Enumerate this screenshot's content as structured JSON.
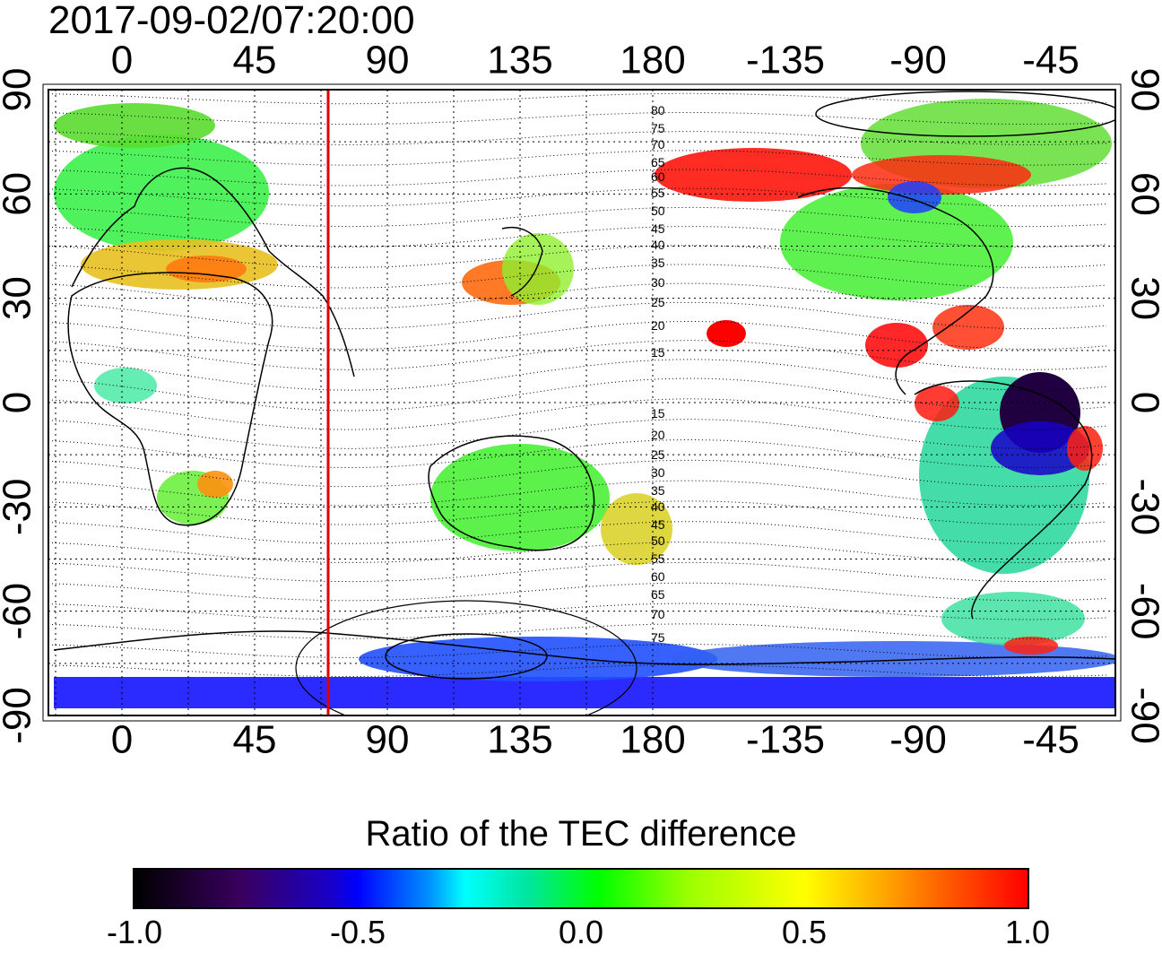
{
  "timestamp": "2017-09-02/07:20:00",
  "map": {
    "lon_ticks_top": [
      "0",
      "45",
      "90",
      "135",
      "180",
      "-135",
      "-90",
      "-45"
    ],
    "lon_ticks_bottom": [
      "0",
      "45",
      "90",
      "135",
      "180",
      "-135",
      "-90",
      "-45"
    ],
    "lat_ticks_left": [
      "90",
      "60",
      "30",
      "0",
      "-30",
      "-60",
      "-90"
    ],
    "lat_ticks_right": [
      "90",
      "60",
      "30",
      "0",
      "-30",
      "-60",
      "-90"
    ],
    "contour_labels_north": [
      "80",
      "75",
      "70",
      "65",
      "60",
      "55",
      "50",
      "45",
      "40",
      "35",
      "30",
      "25",
      "20",
      "15"
    ],
    "contour_labels_south": [
      "15",
      "20",
      "25",
      "30",
      "35",
      "40",
      "45",
      "50",
      "55",
      "60",
      "65",
      "70",
      "75"
    ],
    "marker_line_color": "#e00000",
    "marker_longitude": 70
  },
  "colorbar": {
    "title": "Ratio of the TEC difference",
    "labels": [
      "-1.0",
      "-0.5",
      "0.0",
      "0.5",
      "1.0"
    ],
    "min": -1.0,
    "max": 1.0
  }
}
